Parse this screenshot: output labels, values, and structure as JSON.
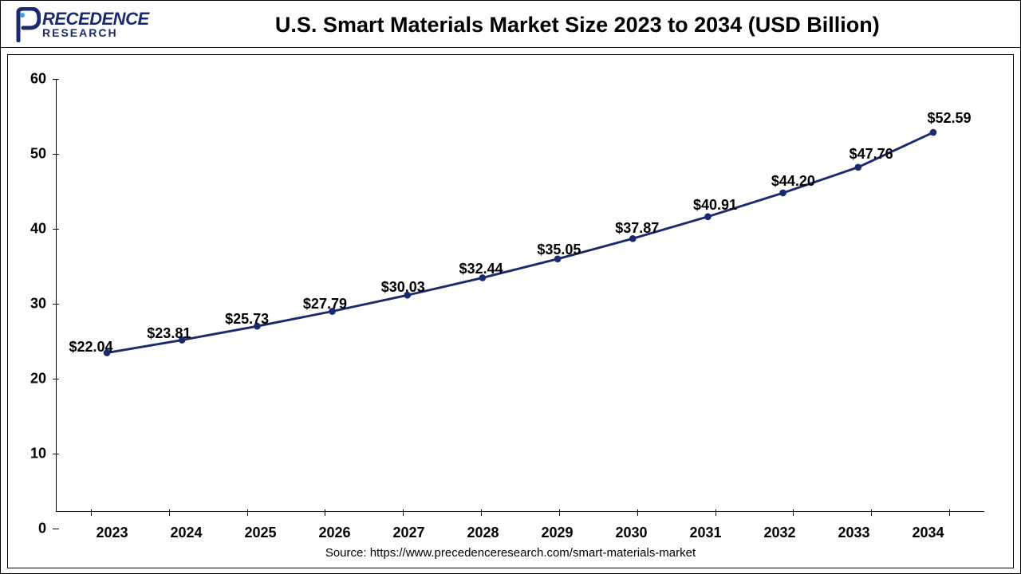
{
  "logo": {
    "line1": "RECEDENCE",
    "line2": "RESEARCH",
    "color": "#1a2a6d"
  },
  "title": "U.S. Smart Materials Market Size 2023 to 2034 (USD Billion)",
  "chart": {
    "type": "line",
    "categories": [
      "2023",
      "2024",
      "2025",
      "2026",
      "2027",
      "2028",
      "2029",
      "2030",
      "2031",
      "2032",
      "2033",
      "2034"
    ],
    "values": [
      22.04,
      23.81,
      25.73,
      27.79,
      30.03,
      32.44,
      35.05,
      37.87,
      40.91,
      44.2,
      47.76,
      52.59
    ],
    "value_labels": [
      "$22.04",
      "$23.81",
      "$25.73",
      "$27.79",
      "$30.03",
      "$32.44",
      "$35.05",
      "$37.87",
      "$40.91",
      "$44.20",
      "$47.76",
      "$52.59"
    ],
    "line_color": "#1a2a6d",
    "marker_color": "#1a2a6d",
    "line_width": 3,
    "marker_radius": 4.5,
    "ylim": [
      0,
      60
    ],
    "ytick_step": 10,
    "yticks": [
      0,
      10,
      20,
      30,
      40,
      50,
      60
    ],
    "label_fontsize": 18,
    "axis_fontsize": 18,
    "background_color": "#ffffff"
  },
  "source": "Source: https://www.precedenceresearch.com/smart-materials-market"
}
